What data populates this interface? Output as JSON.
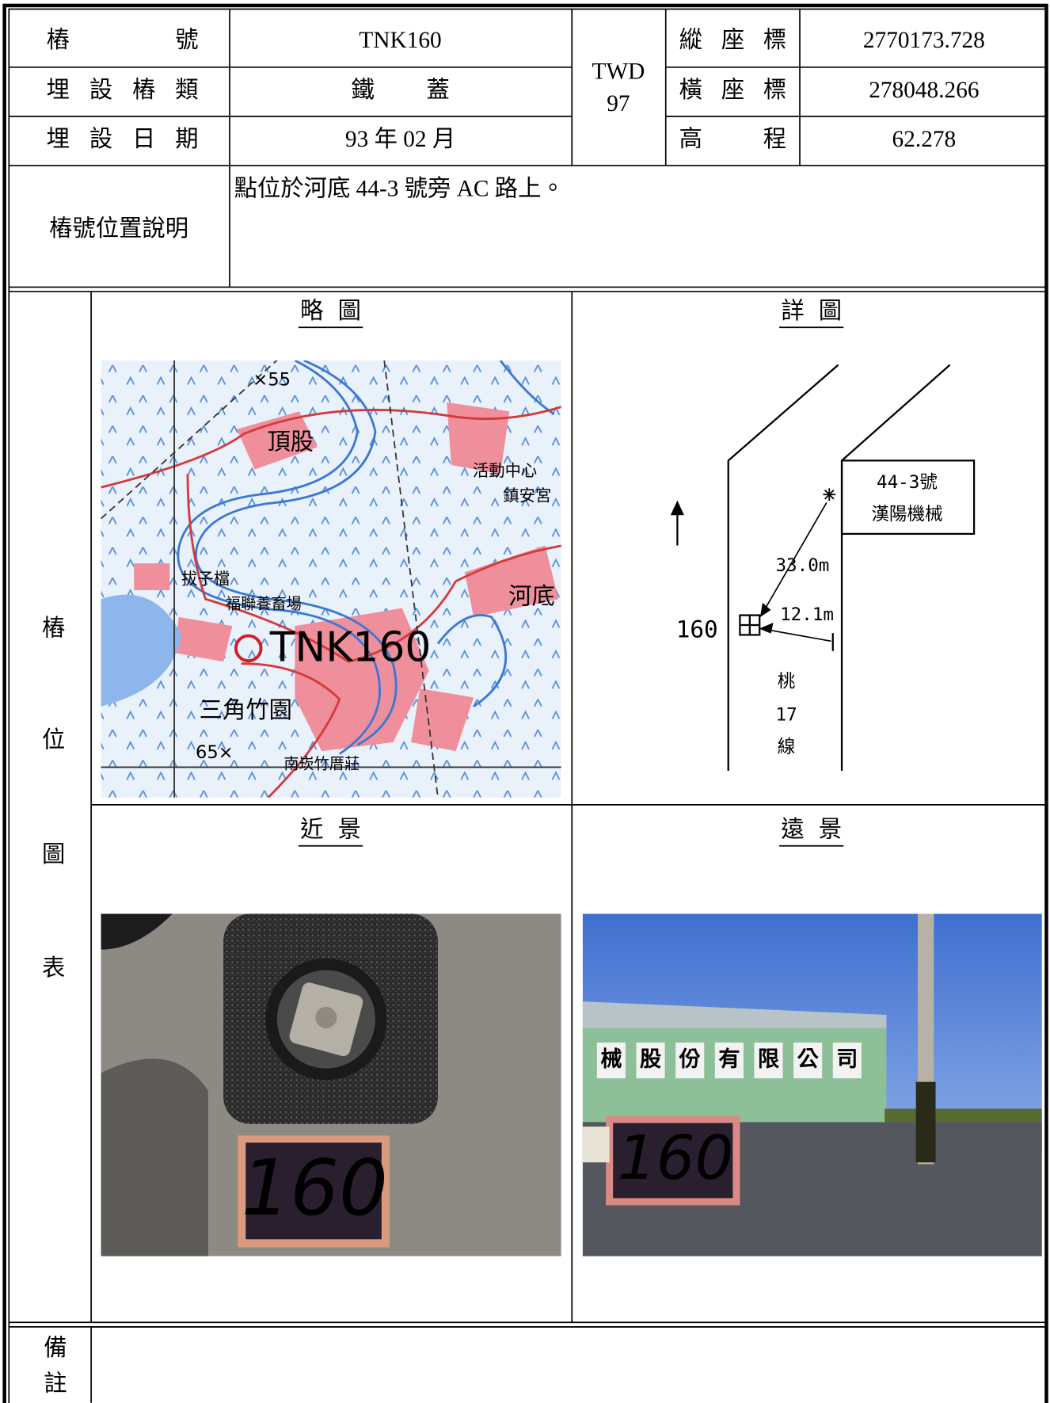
{
  "record": {
    "pile_label": "樁號",
    "pile_value": "TNK160",
    "type_label": "埋設樁類",
    "type_value": "鐵蓋",
    "date_label": "埋設日期",
    "date_value": "93 年 02 月",
    "datum": [
      "TWD",
      "97"
    ],
    "north_label": "縱座標",
    "north_value": "2770173.728",
    "east_label": "橫座標",
    "east_value": "278048.266",
    "height_label": "高程",
    "height_value": "62.278",
    "desc_label": "樁號位置說明",
    "desc_value": "點位於河底 44-3 號旁 AC 路上。"
  },
  "figures": {
    "side_label": [
      "樁",
      "位",
      "圖",
      "表"
    ],
    "sketch_title": "略圖",
    "detail_title": "詳圖",
    "near_title": "近景",
    "far_title": "遠景",
    "map_labels": [
      "×55",
      "頂股",
      "活動中心",
      "鎮安宮",
      "拔子檔",
      "福聯養畜場",
      "河底",
      "TNK160",
      "三角竹園",
      "65×",
      "南崁竹厝莊"
    ],
    "detail_labels": [
      "44-3號",
      "漢陽機械",
      "33.0m",
      "12.1m",
      "160",
      "桃",
      "17",
      "線"
    ],
    "near_board": "160",
    "far_board": "160",
    "far_sign": [
      "械",
      "股",
      "份",
      "有",
      "限",
      "公",
      "司"
    ]
  },
  "remarks": {
    "label": [
      "備",
      "註"
    ]
  }
}
